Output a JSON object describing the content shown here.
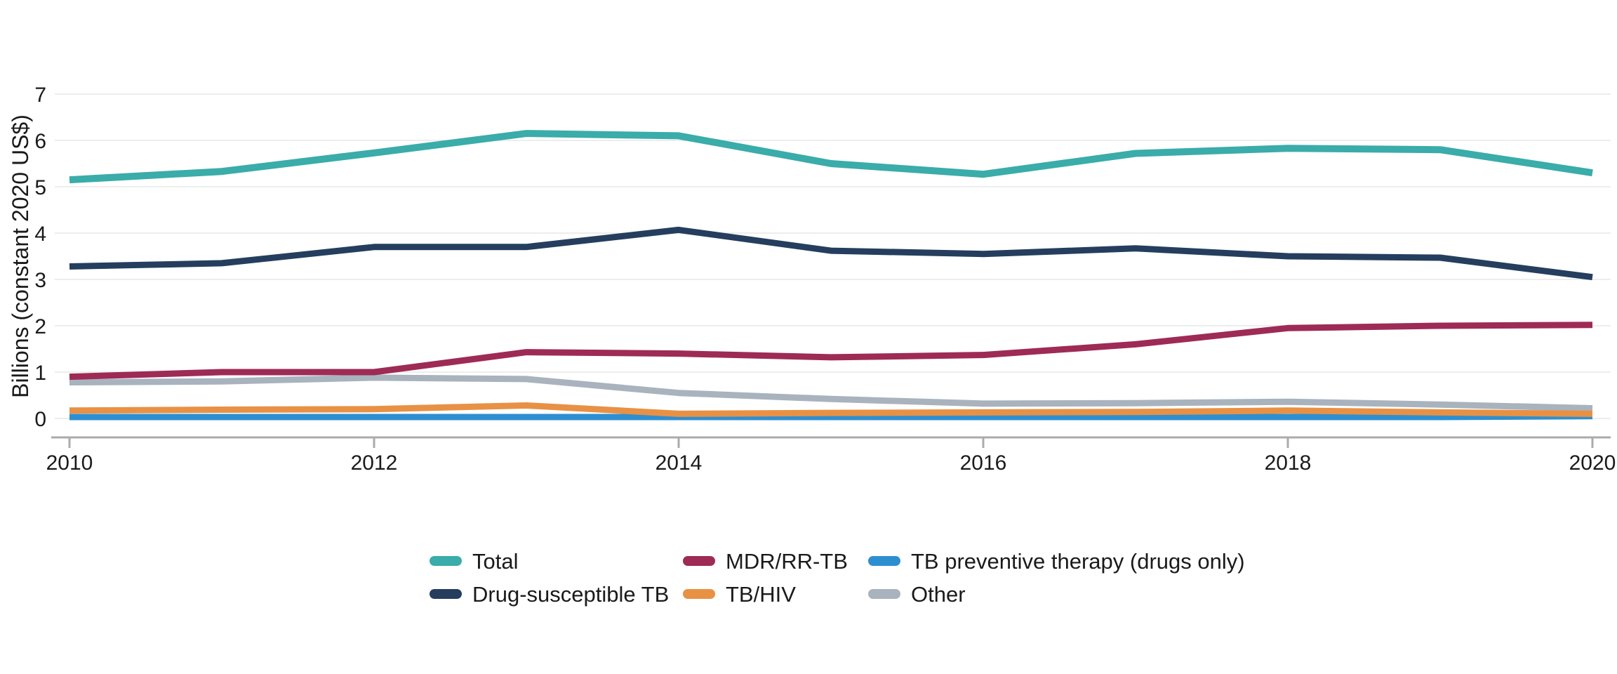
{
  "chart_data": {
    "type": "line",
    "title": "",
    "ylabel": "Billions (constant 2020 US$)",
    "xlabel": "",
    "x": [
      2010,
      2011,
      2012,
      2013,
      2014,
      2015,
      2016,
      2017,
      2018,
      2019,
      2020
    ],
    "xticks": [
      2010,
      2012,
      2014,
      2016,
      2018,
      2020
    ],
    "yticks": [
      0,
      1,
      2,
      3,
      4,
      5,
      6,
      7
    ],
    "ylim": [
      0,
      7
    ],
    "grid": "horizontal",
    "legend_position": "bottom",
    "series": [
      {
        "name": "Total",
        "color": "#3aaca9",
        "values": [
          5.15,
          5.33,
          5.73,
          6.15,
          6.1,
          5.5,
          5.27,
          5.72,
          5.83,
          5.8,
          5.3
        ]
      },
      {
        "name": "Drug-susceptible TB",
        "color": "#253e5e",
        "values": [
          3.28,
          3.35,
          3.7,
          3.7,
          4.07,
          3.62,
          3.55,
          3.67,
          3.5,
          3.47,
          3.05
        ]
      },
      {
        "name": "MDR/RR-TB",
        "color": "#9e2b55",
        "values": [
          0.9,
          1.0,
          1.0,
          1.43,
          1.4,
          1.32,
          1.37,
          1.6,
          1.95,
          2.0,
          2.02
        ]
      },
      {
        "name": "TB/HIV",
        "color": "#e89145",
        "values": [
          0.17,
          0.19,
          0.2,
          0.28,
          0.1,
          0.12,
          0.13,
          0.14,
          0.17,
          0.13,
          0.1
        ]
      },
      {
        "name": "TB preventive therapy (drugs only)",
        "color": "#2e8fd0",
        "values": [
          0.03,
          0.03,
          0.03,
          0.03,
          0.03,
          0.03,
          0.03,
          0.03,
          0.03,
          0.03,
          0.05
        ]
      },
      {
        "name": "Other",
        "color": "#a9b3be",
        "values": [
          0.78,
          0.8,
          0.88,
          0.85,
          0.55,
          0.42,
          0.32,
          0.33,
          0.36,
          0.3,
          0.22
        ]
      }
    ],
    "draw_order": [
      "Other",
      "TB preventive therapy (drugs only)",
      "TB/HIV",
      "MDR/RR-TB",
      "Drug-susceptible TB",
      "Total"
    ],
    "legend_rows": [
      [
        "Total",
        "MDR/RR-TB",
        "TB preventive therapy (drugs only)"
      ],
      [
        "Drug-susceptible TB",
        "TB/HIV",
        "Other"
      ]
    ],
    "colors": {
      "gridline": "#e7e7e7",
      "axis": "#ababab",
      "tick_text": "#1a1a1a"
    }
  }
}
